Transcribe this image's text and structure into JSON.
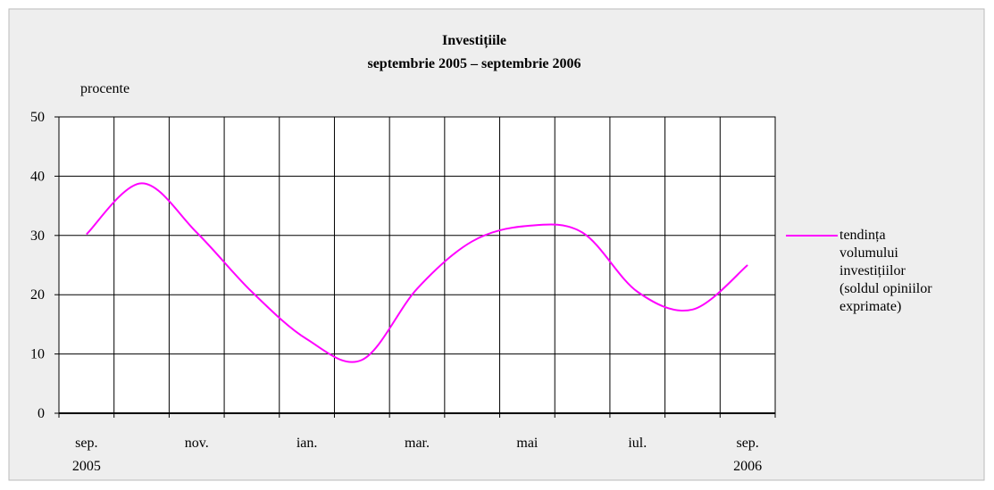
{
  "chart_data": {
    "type": "line",
    "title": "Investițiile",
    "subtitle": "septembrie 2005 – septembrie 2006",
    "y_label": "procente",
    "categories": [
      "sep.\n2005",
      null,
      "nov.",
      null,
      "ian.",
      null,
      "mar.",
      null,
      "mai",
      null,
      "iul.",
      null,
      "sep.\n2006"
    ],
    "series": [
      {
        "name": "tendința\nvolumului\ninvestițiilor\n(soldul opiniilor\nexprimate)",
        "color": "#ff00ff",
        "values": [
          30.2,
          38.8,
          30.5,
          20.5,
          12.5,
          9,
          21,
          29,
          31.6,
          30.5,
          20.5,
          17.5,
          25
        ]
      }
    ],
    "ylim": [
      0,
      50
    ],
    "yticks": [
      0,
      10,
      20,
      30,
      40,
      50
    ],
    "grid": true,
    "legend": "right"
  }
}
